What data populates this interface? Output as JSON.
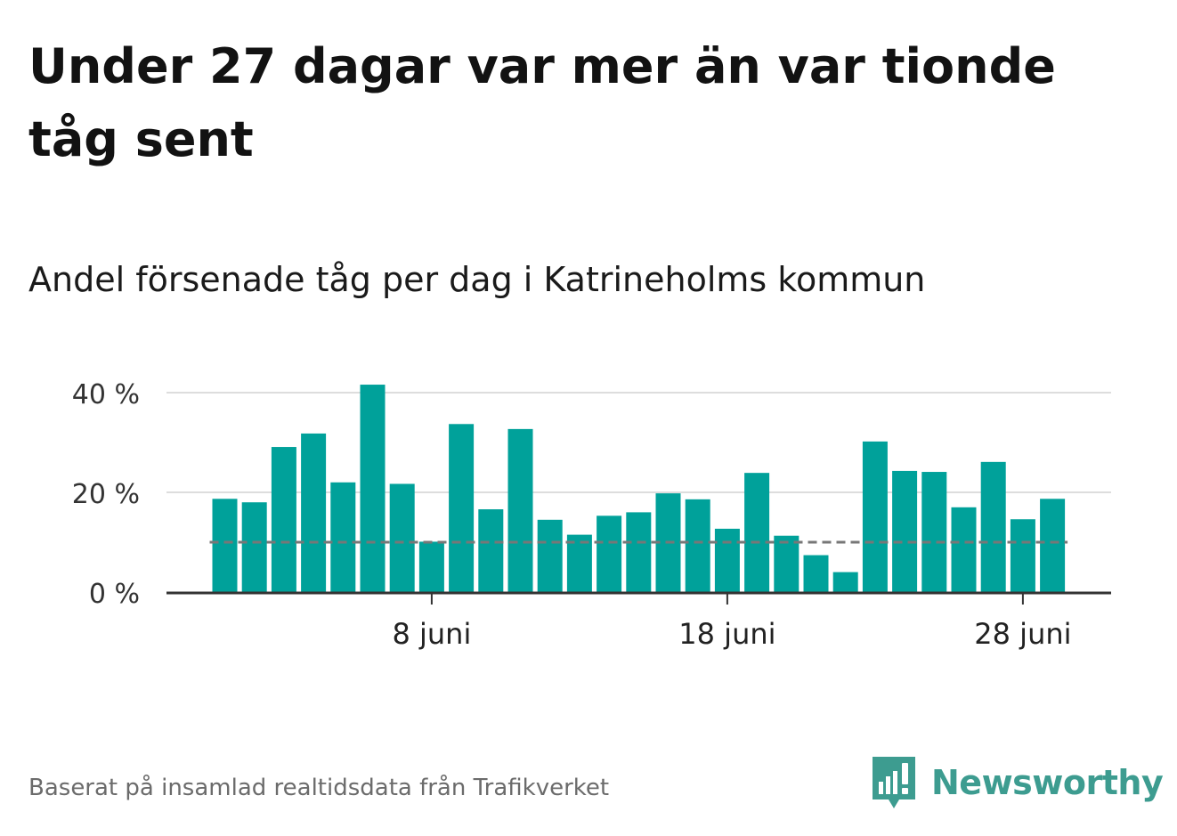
{
  "title": "Under 27 dagar var mer än var tionde tåg sent",
  "subtitle": "Andel försenade tåg per dag i Katrineholms kommun",
  "source": "Baserat på insamlad realtidsdata från Trafikverket",
  "brand": {
    "name": "Newsworthy",
    "icon": "newsworthy-logo-icon",
    "color": "#3d9c90"
  },
  "colors": {
    "bar": "#00a19a",
    "reference_line": "#777777",
    "grid": "#dddddd",
    "axis": "#333333"
  },
  "chart_data": {
    "type": "bar",
    "x": [
      "1 juni",
      "2 juni",
      "3 juni",
      "4 juni",
      "5 juni",
      "6 juni",
      "7 juni",
      "8 juni",
      "9 juni",
      "10 juni",
      "11 juni",
      "12 juni",
      "13 juni",
      "14 juni",
      "15 juni",
      "16 juni",
      "17 juni",
      "18 juni",
      "19 juni",
      "20 juni",
      "21 juni",
      "22 juni",
      "23 juni",
      "24 juni",
      "25 juni",
      "26 juni",
      "27 juni",
      "28 juni",
      "29 juni"
    ],
    "values": [
      18.7,
      18.0,
      29.1,
      31.8,
      22.0,
      41.6,
      21.7,
      10.1,
      33.7,
      16.6,
      32.7,
      14.5,
      11.5,
      15.3,
      16.0,
      19.8,
      18.6,
      12.7,
      23.9,
      11.3,
      7.4,
      4.0,
      30.2,
      24.3,
      24.1,
      17.0,
      26.1,
      14.6,
      18.7
    ],
    "reference_value": 10,
    "ylim": [
      0,
      43
    ],
    "yticks": [
      0,
      20,
      40
    ],
    "ytick_labels": [
      "0 %",
      "20 %",
      "40 %"
    ],
    "xticks": [
      {
        "x": "8 juni",
        "label": "8 juni"
      },
      {
        "x": "18 juni",
        "label": "18 juni"
      },
      {
        "x": "28 juni",
        "label": "28 juni"
      }
    ],
    "grid": true,
    "legend": "none"
  }
}
